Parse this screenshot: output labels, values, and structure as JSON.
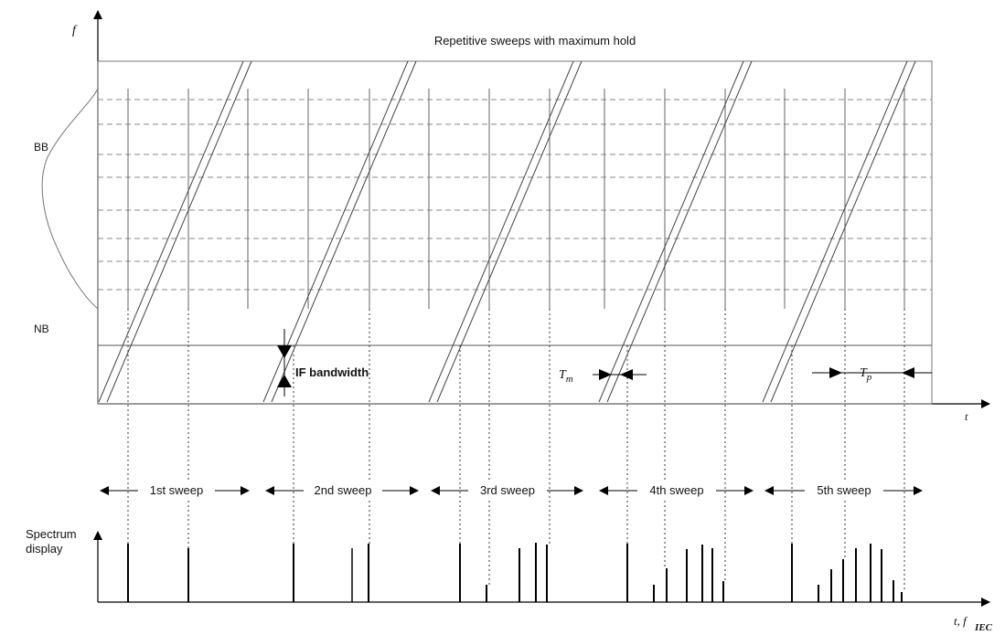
{
  "title": "Repetitive sweeps with maximum hold",
  "axes": {
    "f_label": "f",
    "t_label": "t",
    "tf_label": "t, f"
  },
  "labels": {
    "bb": "BB",
    "nb": "NB",
    "if_bandwidth": "IF bandwidth",
    "tm_base": "T",
    "tm_sub": "m",
    "tp_base": "T",
    "tp_sub": "p",
    "spectrum_line1": "Spectrum",
    "spectrum_line2": "display",
    "iec": "IEC"
  },
  "sweeps": [
    "1st sweep",
    "2nd sweep",
    "3rd sweep",
    "4th sweep",
    "5th sweep"
  ]
}
